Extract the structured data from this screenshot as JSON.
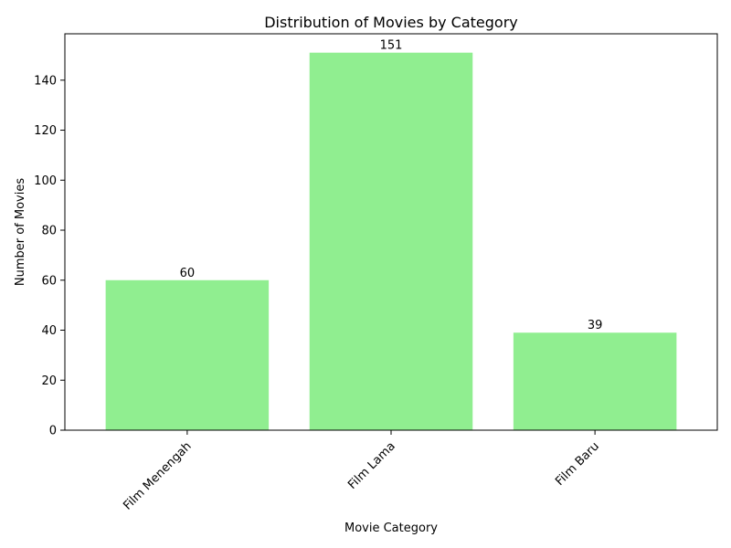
{
  "chart_data": {
    "type": "bar",
    "title": "Distribution of Movies by Category",
    "xlabel": "Movie Category",
    "ylabel": "Number of Movies",
    "categories": [
      "Film Menengah",
      "Film Lama",
      "Film Baru"
    ],
    "values": [
      60,
      151,
      39
    ],
    "ylim": [
      0,
      158.55
    ],
    "yticks": [
      0,
      20,
      40,
      60,
      80,
      100,
      120,
      140
    ],
    "bar_color": "#90ee90",
    "grid": false,
    "legend": "none",
    "xtick_rotation": 45
  }
}
